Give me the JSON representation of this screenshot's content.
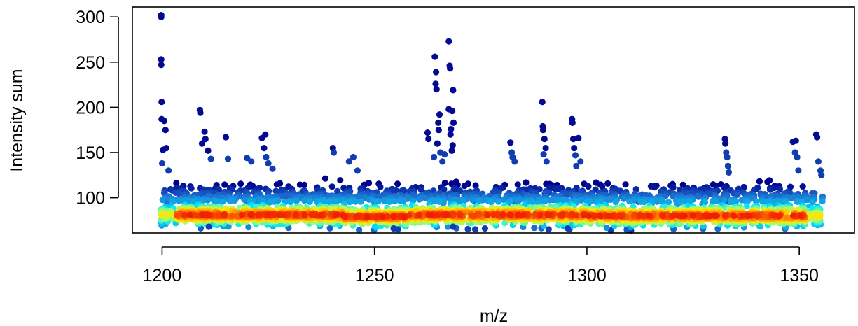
{
  "chart_data": {
    "type": "scatter",
    "title": "",
    "xlabel": "m/z",
    "ylabel": "Intensity sum",
    "xlim": [
      1193,
      1363
    ],
    "ylim": [
      61,
      311
    ],
    "xticks": [
      "1200",
      "1250",
      "1300",
      "1350"
    ],
    "yticks": [
      "100",
      "150",
      "200",
      "250",
      "300"
    ],
    "grid": false,
    "legend": "none",
    "color_scale": "point density (blue = sparse, red = dense)",
    "colors": {
      "low": "#00008b",
      "mid_low": "#1e6fd0",
      "mid": "#00ffff",
      "mid_high": "#c8ff3c",
      "high": "#ff2000",
      "axis": "#000000"
    },
    "bands": [
      {
        "x_range": [
          1199.5,
          1243
        ],
        "y_center": 81,
        "y_spread": 7,
        "density": "high"
      },
      {
        "x_range": [
          1243,
          1258
        ],
        "y_center": 79,
        "y_spread": 7,
        "density": "high"
      },
      {
        "x_range": [
          1258,
          1300
        ],
        "y_center": 81,
        "y_spread": 7,
        "density": "high"
      },
      {
        "x_range": [
          1300,
          1355
        ],
        "y_center": 80,
        "y_spread": 7,
        "density": "high"
      }
    ],
    "outliers": [
      {
        "x": 1199.8,
        "y": 302
      },
      {
        "x": 1199.8,
        "y": 300
      },
      {
        "x": 1199.8,
        "y": 253
      },
      {
        "x": 1199.8,
        "y": 247
      },
      {
        "x": 1199.9,
        "y": 206
      },
      {
        "x": 1199.9,
        "y": 187
      },
      {
        "x": 1200.5,
        "y": 185
      },
      {
        "x": 1200.8,
        "y": 175
      },
      {
        "x": 1200.2,
        "y": 153
      },
      {
        "x": 1201.0,
        "y": 155
      },
      {
        "x": 1200.0,
        "y": 138
      },
      {
        "x": 1201.5,
        "y": 130
      },
      {
        "x": 1208.9,
        "y": 197
      },
      {
        "x": 1209.0,
        "y": 194
      },
      {
        "x": 1209.4,
        "y": 160
      },
      {
        "x": 1210.0,
        "y": 173
      },
      {
        "x": 1210.2,
        "y": 165
      },
      {
        "x": 1210.8,
        "y": 152
      },
      {
        "x": 1211.5,
        "y": 143
      },
      {
        "x": 1215.0,
        "y": 167
      },
      {
        "x": 1215.5,
        "y": 143
      },
      {
        "x": 1220.0,
        "y": 144
      },
      {
        "x": 1221.0,
        "y": 140
      },
      {
        "x": 1223.5,
        "y": 166
      },
      {
        "x": 1224.3,
        "y": 170
      },
      {
        "x": 1224.0,
        "y": 155
      },
      {
        "x": 1224.5,
        "y": 145
      },
      {
        "x": 1225.0,
        "y": 138
      },
      {
        "x": 1226.0,
        "y": 132
      },
      {
        "x": 1240.2,
        "y": 155
      },
      {
        "x": 1240.4,
        "y": 150
      },
      {
        "x": 1245.0,
        "y": 145
      },
      {
        "x": 1244.0,
        "y": 140
      },
      {
        "x": 1246.0,
        "y": 130
      },
      {
        "x": 1264.2,
        "y": 256
      },
      {
        "x": 1264.5,
        "y": 239
      },
      {
        "x": 1264.4,
        "y": 226
      },
      {
        "x": 1264.6,
        "y": 220
      },
      {
        "x": 1265.3,
        "y": 192
      },
      {
        "x": 1265.0,
        "y": 183
      },
      {
        "x": 1265.1,
        "y": 175
      },
      {
        "x": 1264.8,
        "y": 160
      },
      {
        "x": 1265.5,
        "y": 150
      },
      {
        "x": 1264.0,
        "y": 145
      },
      {
        "x": 1262.5,
        "y": 172
      },
      {
        "x": 1262.7,
        "y": 165
      },
      {
        "x": 1267.5,
        "y": 273
      },
      {
        "x": 1267.7,
        "y": 246
      },
      {
        "x": 1267.8,
        "y": 243
      },
      {
        "x": 1268.5,
        "y": 219
      },
      {
        "x": 1267.5,
        "y": 198
      },
      {
        "x": 1268.3,
        "y": 196
      },
      {
        "x": 1268.6,
        "y": 183
      },
      {
        "x": 1268.0,
        "y": 176
      },
      {
        "x": 1267.9,
        "y": 170
      },
      {
        "x": 1268.4,
        "y": 158
      },
      {
        "x": 1268.2,
        "y": 152
      },
      {
        "x": 1266.5,
        "y": 148
      },
      {
        "x": 1266.0,
        "y": 140
      },
      {
        "x": 1282.0,
        "y": 161
      },
      {
        "x": 1282.3,
        "y": 150
      },
      {
        "x": 1282.5,
        "y": 145
      },
      {
        "x": 1283.0,
        "y": 140
      },
      {
        "x": 1289.5,
        "y": 206
      },
      {
        "x": 1289.6,
        "y": 179
      },
      {
        "x": 1289.7,
        "y": 175
      },
      {
        "x": 1290.0,
        "y": 165
      },
      {
        "x": 1290.3,
        "y": 155
      },
      {
        "x": 1289.8,
        "y": 148
      },
      {
        "x": 1290.5,
        "y": 140
      },
      {
        "x": 1296.5,
        "y": 187
      },
      {
        "x": 1296.6,
        "y": 183
      },
      {
        "x": 1296.8,
        "y": 165
      },
      {
        "x": 1297.0,
        "y": 155
      },
      {
        "x": 1298.0,
        "y": 166
      },
      {
        "x": 1297.3,
        "y": 147
      },
      {
        "x": 1298.5,
        "y": 140
      },
      {
        "x": 1297.5,
        "y": 135
      },
      {
        "x": 1332.5,
        "y": 165
      },
      {
        "x": 1332.6,
        "y": 160
      },
      {
        "x": 1332.8,
        "y": 150
      },
      {
        "x": 1333.0,
        "y": 145
      },
      {
        "x": 1333.2,
        "y": 135
      },
      {
        "x": 1333.4,
        "y": 128
      },
      {
        "x": 1348.5,
        "y": 162
      },
      {
        "x": 1349.2,
        "y": 163
      },
      {
        "x": 1349.0,
        "y": 150
      },
      {
        "x": 1349.5,
        "y": 145
      },
      {
        "x": 1349.8,
        "y": 130
      },
      {
        "x": 1354.0,
        "y": 170
      },
      {
        "x": 1354.2,
        "y": 167
      },
      {
        "x": 1354.5,
        "y": 140
      },
      {
        "x": 1355.0,
        "y": 130
      },
      {
        "x": 1355.2,
        "y": 125
      },
      {
        "x": 1254.5,
        "y": 66
      },
      {
        "x": 1255.5,
        "y": 65
      },
      {
        "x": 1276.0,
        "y": 66
      },
      {
        "x": 1291.0,
        "y": 65
      },
      {
        "x": 1295.5,
        "y": 66
      },
      {
        "x": 1268.5,
        "y": 68
      },
      {
        "x": 1211.0,
        "y": 68
      }
    ]
  }
}
